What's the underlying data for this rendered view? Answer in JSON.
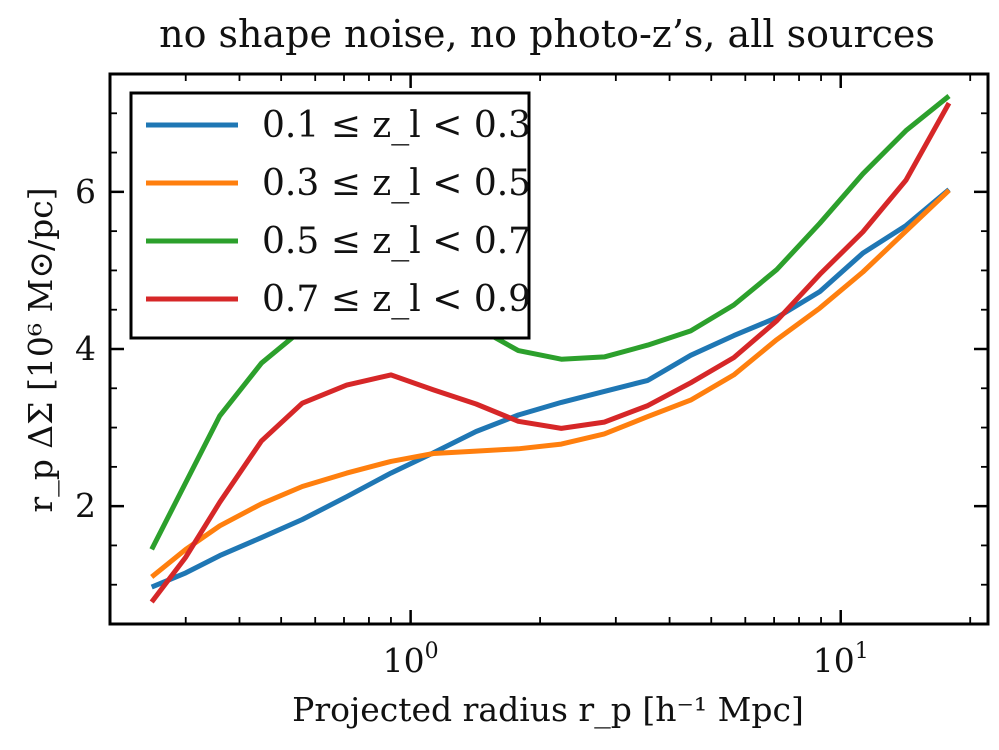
{
  "chart_data": {
    "type": "line",
    "title": "no shape noise, no photo-z’s, all sources",
    "xlabel": "Projected radius r_p [h⁻¹ Mpc]",
    "ylabel": "r_p ΔΣ [10⁶ M⊙/pc]",
    "xscale": "log",
    "xlim": [
      0.2,
      22
    ],
    "ylim": [
      0.5,
      7.5
    ],
    "x_ticks": [
      {
        "value": 1,
        "base": "10",
        "exp": "0"
      },
      {
        "value": 10,
        "base": "10",
        "exp": "1"
      }
    ],
    "y_ticks": [
      {
        "value": 2,
        "label": "2"
      },
      {
        "value": 4,
        "label": "4"
      },
      {
        "value": 6,
        "label": "6"
      }
    ],
    "grid": false,
    "legend_position": "upper-left",
    "x": [
      0.25,
      0.3,
      0.36,
      0.45,
      0.56,
      0.71,
      0.9,
      1.13,
      1.42,
      1.78,
      2.24,
      2.82,
      3.56,
      4.48,
      5.64,
      7.1,
      8.94,
      11.26,
      14.18,
      17.85
    ],
    "series": [
      {
        "name": "0.1 ≤ z_l < 0.3",
        "color": "#1f77b4",
        "values": [
          0.97,
          1.15,
          1.37,
          1.6,
          1.83,
          2.12,
          2.42,
          2.68,
          2.95,
          3.16,
          3.32,
          3.46,
          3.6,
          3.92,
          4.17,
          4.4,
          4.73,
          5.22,
          5.57,
          6.03
        ]
      },
      {
        "name": "0.3 ≤ z_l < 0.5",
        "color": "#ff7f0e",
        "values": [
          1.1,
          1.45,
          1.75,
          2.03,
          2.25,
          2.42,
          2.57,
          2.67,
          2.7,
          2.73,
          2.79,
          2.92,
          3.14,
          3.35,
          3.67,
          4.12,
          4.52,
          4.98,
          5.5,
          6.02
        ]
      },
      {
        "name": "0.5 ≤ z_l < 0.7",
        "color": "#2ca02c",
        "values": [
          1.45,
          2.3,
          3.15,
          3.82,
          4.25,
          4.38,
          4.42,
          4.4,
          4.28,
          3.98,
          3.87,
          3.9,
          4.05,
          4.23,
          4.56,
          5.01,
          5.6,
          6.23,
          6.78,
          7.22
        ]
      },
      {
        "name": "0.7 ≤ z_l < 0.9",
        "color": "#d62728",
        "values": [
          0.78,
          1.35,
          2.05,
          2.83,
          3.31,
          3.54,
          3.67,
          3.48,
          3.3,
          3.08,
          2.99,
          3.07,
          3.28,
          3.57,
          3.89,
          4.36,
          4.95,
          5.49,
          6.15,
          7.13
        ]
      }
    ]
  }
}
